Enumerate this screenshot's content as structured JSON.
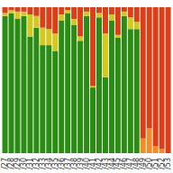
{
  "chart_data": {
    "type": "bar",
    "stacked": true,
    "tick_labels": "x",
    "grid": false,
    "categories": [
      "/27",
      "/28",
      "/29",
      "/30",
      "/31",
      "/32",
      "/33",
      "/34",
      "/35",
      "/36",
      "/37",
      "/38",
      "/39",
      "/40",
      "/41",
      "/42",
      "/43",
      "/44",
      "/45",
      "/46",
      "/47",
      "/48",
      "/49",
      "/50",
      "/51",
      "/52",
      "/53"
    ],
    "ylim": [
      0,
      100
    ],
    "series": [
      {
        "color": "#2a8c12",
        "values": [
          94,
          96,
          92,
          94,
          80,
          86,
          74,
          74,
          70,
          91,
          96,
          88,
          77,
          94,
          45,
          93,
          52,
          91,
          79,
          94,
          85,
          85,
          0,
          0,
          0,
          0,
          0
        ]
      },
      {
        "color": "#f08c2a",
        "values": [
          0,
          0,
          0,
          0,
          0,
          0,
          0,
          0,
          0,
          0,
          0,
          0,
          0,
          0,
          0,
          0,
          0,
          0,
          0,
          0,
          0,
          0,
          10,
          17,
          5,
          3,
          0
        ]
      },
      {
        "color": "#d4c81e",
        "values": [
          2,
          2,
          5,
          3,
          15,
          8,
          12,
          11,
          12,
          4,
          2,
          4,
          3,
          3,
          1,
          3,
          30,
          4,
          2,
          3,
          8,
          5,
          0,
          0,
          0,
          0,
          0
        ]
      },
      {
        "color": "#d9401a",
        "values": [
          4,
          2,
          3,
          3,
          5,
          6,
          14,
          15,
          18,
          5,
          2,
          8,
          20,
          3,
          54,
          4,
          18,
          5,
          19,
          3,
          7,
          10,
          90,
          83,
          95,
          97,
          100
        ]
      }
    ]
  }
}
